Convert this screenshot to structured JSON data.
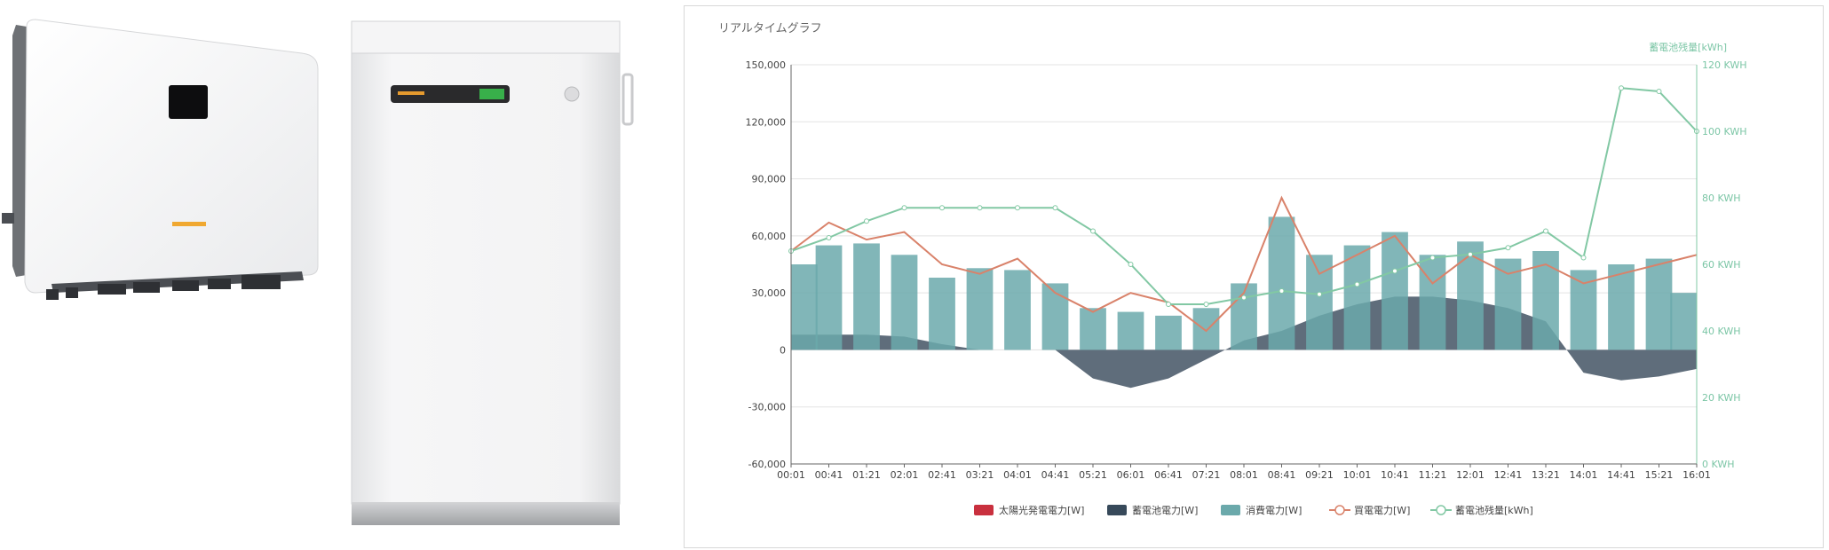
{
  "panel": {
    "title": "リアルタイムグラフ"
  },
  "colors": {
    "solar": "#c9303e",
    "battery": "#37495a",
    "consumption": "#6ba9ab",
    "purchase": "#d9826a",
    "battery_level": "#82c8a4"
  },
  "chart_data": {
    "type": "line",
    "title": "リアルタイムグラフ",
    "xlabel": "",
    "ylabel": "",
    "y2label": "蓄電池残量[kWh]",
    "ylim": [
      -60000,
      150000
    ],
    "y2lim": [
      0,
      120
    ],
    "yticks": [
      "-60,000",
      "-30,000",
      "0",
      "30,000",
      "60,000",
      "90,000",
      "120,000",
      "150,000"
    ],
    "ytick_values": [
      -60000,
      -30000,
      0,
      30000,
      60000,
      90000,
      120000,
      150000
    ],
    "y2ticks": [
      "0 KWH",
      "20 KWH",
      "40 KWH",
      "60 KWH",
      "80 KWH",
      "100 KWH",
      "120 KWH"
    ],
    "y2tick_values": [
      0,
      20,
      40,
      60,
      80,
      100,
      120
    ],
    "x_ticks": [
      "00:01",
      "00:41",
      "01:21",
      "02:01",
      "02:41",
      "03:21",
      "04:01",
      "04:41",
      "05:21",
      "06:01",
      "06:41",
      "07:21",
      "08:01",
      "08:41",
      "09:21",
      "10:01",
      "10:41",
      "11:21",
      "12:01",
      "12:41",
      "13:21",
      "14:01",
      "14:41",
      "15:21",
      "16:01"
    ],
    "grid": true,
    "legend_position": "bottom",
    "series": [
      {
        "name": "太陽光発電電力[W]",
        "kind": "area",
        "values": [
          0,
          0,
          0,
          0,
          0,
          0,
          0,
          0,
          0,
          0,
          0,
          0,
          0,
          0,
          0,
          0,
          0,
          0,
          0,
          0,
          0,
          0,
          0,
          0,
          0
        ]
      },
      {
        "name": "蓄電池電力[W]",
        "kind": "area",
        "values": [
          8000,
          8000,
          8000,
          7000,
          3000,
          0,
          0,
          0,
          -15000,
          -20000,
          -15000,
          -5000,
          5000,
          10000,
          18000,
          24000,
          28000,
          28000,
          26000,
          22000,
          15000,
          -12000,
          -16000,
          -14000,
          -10000
        ]
      },
      {
        "name": "消費電力[W]",
        "kind": "bar",
        "values": [
          45000,
          55000,
          56000,
          50000,
          38000,
          43000,
          42000,
          35000,
          22000,
          20000,
          18000,
          22000,
          35000,
          70000,
          50000,
          55000,
          62000,
          50000,
          57000,
          48000,
          52000,
          42000,
          45000,
          48000,
          30000
        ]
      },
      {
        "name": "買電電力[W]",
        "kind": "line",
        "values": [
          52000,
          67000,
          58000,
          62000,
          45000,
          40000,
          48000,
          30000,
          20000,
          30000,
          25000,
          10000,
          30000,
          80000,
          40000,
          50000,
          60000,
          35000,
          50000,
          40000,
          45000,
          35000,
          40000,
          45000,
          50000
        ]
      },
      {
        "name": "蓄電池残量[kWh]",
        "kind": "line",
        "axis": "right",
        "values": [
          64,
          68,
          73,
          77,
          77,
          77,
          77,
          77,
          70,
          60,
          48,
          48,
          50,
          52,
          51,
          54,
          58,
          62,
          63,
          65,
          70,
          62,
          113,
          112,
          100
        ]
      }
    ]
  }
}
